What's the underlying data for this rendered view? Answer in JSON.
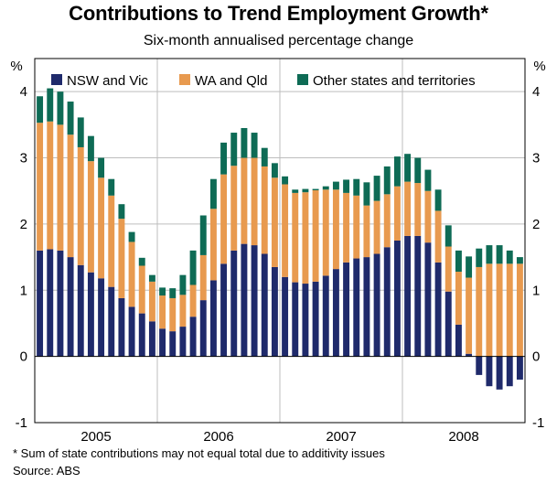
{
  "chart_data": {
    "type": "bar",
    "stacked": true,
    "title": "Contributions to Trend Employment Growth*",
    "subtitle": "Six-month annualised percentage change",
    "ylabel_left": "%",
    "ylabel_right": "%",
    "ylim": [
      -1,
      4.5
    ],
    "yticks": [
      -1,
      0,
      1,
      2,
      3,
      4
    ],
    "grid": true,
    "year_labels": [
      "2005",
      "2006",
      "2007",
      "2008"
    ],
    "legend_position": "top",
    "series": [
      {
        "name": "NSW and Vic",
        "color": "#1f2a6b",
        "values": [
          1.6,
          1.62,
          1.6,
          1.5,
          1.38,
          1.27,
          1.18,
          1.05,
          0.88,
          0.75,
          0.65,
          0.53,
          0.42,
          0.38,
          0.45,
          0.6,
          0.85,
          1.15,
          1.4,
          1.6,
          1.7,
          1.68,
          1.55,
          1.35,
          1.2,
          1.12,
          1.1,
          1.13,
          1.22,
          1.32,
          1.42,
          1.48,
          1.5,
          1.55,
          1.65,
          1.75,
          1.82,
          1.82,
          1.72,
          1.42,
          0.98,
          0.48,
          0.04,
          -0.28,
          -0.45,
          -0.5,
          -0.45,
          -0.35
        ]
      },
      {
        "name": "WA and Qld",
        "color": "#e89a4f",
        "values": [
          1.93,
          1.93,
          1.9,
          1.85,
          1.78,
          1.68,
          1.52,
          1.38,
          1.2,
          0.98,
          0.72,
          0.6,
          0.5,
          0.5,
          0.48,
          0.48,
          0.68,
          1.08,
          1.35,
          1.28,
          1.3,
          1.32,
          1.32,
          1.35,
          1.4,
          1.35,
          1.38,
          1.38,
          1.3,
          1.2,
          1.05,
          0.95,
          0.78,
          0.8,
          0.8,
          0.82,
          0.82,
          0.8,
          0.78,
          0.78,
          0.68,
          0.8,
          1.15,
          1.35,
          1.4,
          1.4,
          1.4,
          1.4
        ]
      },
      {
        "name": "Other states and territories",
        "color": "#0e6b55",
        "values": [
          0.4,
          0.5,
          0.5,
          0.5,
          0.45,
          0.38,
          0.3,
          0.25,
          0.22,
          0.15,
          0.12,
          0.1,
          0.12,
          0.15,
          0.3,
          0.52,
          0.6,
          0.45,
          0.48,
          0.5,
          0.45,
          0.38,
          0.28,
          0.22,
          0.12,
          0.05,
          0.05,
          0.02,
          0.05,
          0.12,
          0.2,
          0.25,
          0.35,
          0.38,
          0.42,
          0.45,
          0.42,
          0.38,
          0.32,
          0.32,
          0.32,
          0.32,
          0.32,
          0.28,
          0.28,
          0.28,
          0.2,
          0.1
        ]
      }
    ]
  },
  "footnote": "*    Sum of state contributions may not equal total due to additivity issues",
  "source": "Source: ABS"
}
